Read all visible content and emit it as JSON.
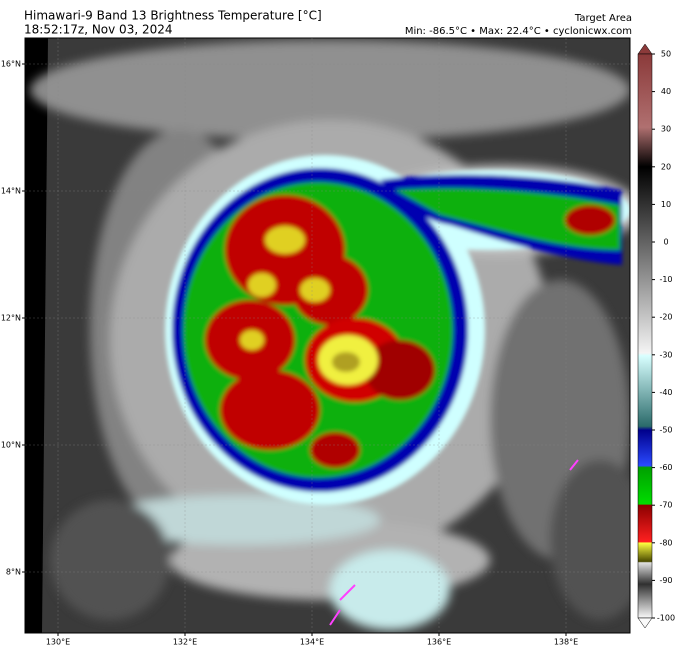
{
  "header": {
    "title": "Himawari-9 Band 13 Brightness Temperature [°C]",
    "datetime": "18:52:17z, Nov 03, 2024",
    "area": "Target Area",
    "stats": "Min: -86.5°C • Max: 22.4°C • cyclonicwx.com"
  },
  "map": {
    "lat_ticks": [
      {
        "value": 16,
        "label": "16°N"
      },
      {
        "value": 14,
        "label": "14°N"
      },
      {
        "value": 12,
        "label": "12°N"
      },
      {
        "value": 10,
        "label": "10°N"
      },
      {
        "value": 8,
        "label": "8°N"
      }
    ],
    "lon_ticks": [
      {
        "value": 130,
        "label": "130°E"
      },
      {
        "value": 132,
        "label": "132°E"
      },
      {
        "value": 134,
        "label": "134°E"
      },
      {
        "value": 136,
        "label": "136°E"
      },
      {
        "value": 138,
        "label": "138°E"
      }
    ]
  },
  "colorbar": {
    "ticks": [
      50,
      40,
      30,
      20,
      10,
      0,
      -10,
      -20,
      -30,
      -40,
      -50,
      -60,
      -70,
      -80,
      -90,
      -100
    ]
  }
}
